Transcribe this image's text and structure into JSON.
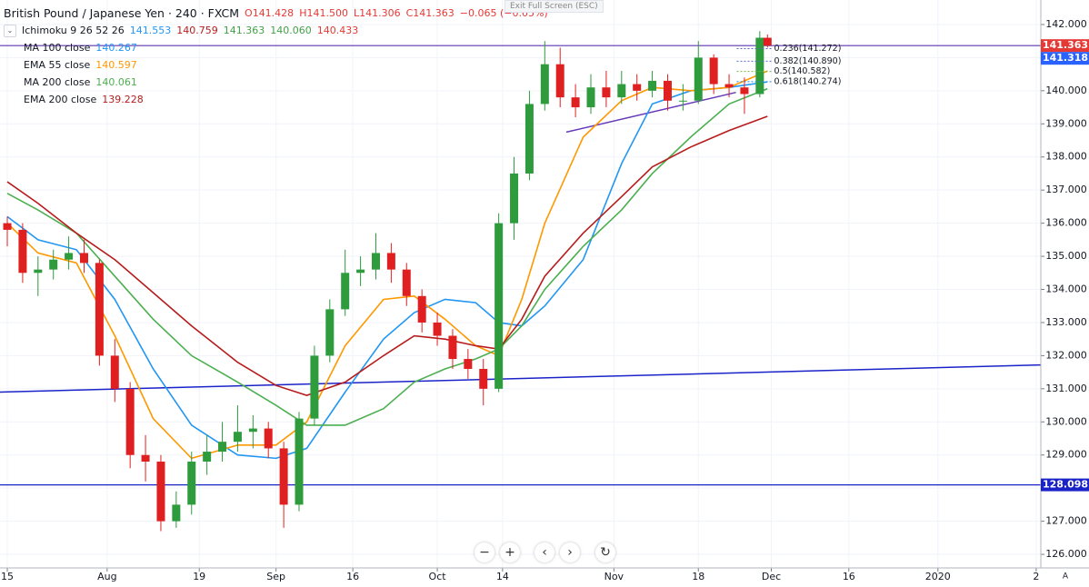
{
  "chart_data": {
    "type": "candlestick",
    "title": "British Pound / Japanese Yen · 240 · FXCM",
    "quote": [
      "O141.428",
      "H141.500",
      "L141.306",
      "C141.363",
      "−0.065 (−0.05%)"
    ],
    "quote_color": "#e53935",
    "indicator": {
      "name": "Ichimoku 9 26 52 26",
      "values": [
        "141.553",
        "140.759",
        "141.363",
        "140.060",
        "140.433"
      ],
      "colors": [
        "#2196f3",
        "#b71c1c",
        "#43a047",
        "#43a047",
        "#e53935"
      ]
    },
    "fullscreen_hint": "Exit Full Screen (ESC)",
    "scale_mode": "A",
    "xlim": [
      -0.95,
      134.6
    ],
    "ylim": [
      125.59,
      142.74
    ],
    "grid": true,
    "xticks": [
      {
        "value": 0,
        "label": "15"
      },
      {
        "value": 13,
        "label": "Aug"
      },
      {
        "value": 25,
        "label": "19"
      },
      {
        "value": 35,
        "label": "Sep"
      },
      {
        "value": 45,
        "label": "16"
      },
      {
        "value": 56,
        "label": "Oct"
      },
      {
        "value": 64.5,
        "label": "14"
      },
      {
        "value": 79,
        "label": "Nov"
      },
      {
        "value": 90,
        "label": "18"
      },
      {
        "value": 99.5,
        "label": "Dec"
      },
      {
        "value": 109.6,
        "label": "16"
      },
      {
        "value": 121.2,
        "label": "2020"
      },
      {
        "value": 134,
        "label": "2"
      }
    ],
    "yticks": [
      {
        "value": 126,
        "label": "126.000"
      },
      {
        "value": 127,
        "label": "127.000"
      },
      {
        "value": 128,
        "label": "128.000"
      },
      {
        "value": 129,
        "label": "129.000"
      },
      {
        "value": 130,
        "label": "130.000"
      },
      {
        "value": 131,
        "label": "131.000"
      },
      {
        "value": 132,
        "label": "132.000"
      },
      {
        "value": 133,
        "label": "133.000"
      },
      {
        "value": 134,
        "label": "134.000"
      },
      {
        "value": 135,
        "label": "135.000"
      },
      {
        "value": 136,
        "label": "136.000"
      },
      {
        "value": 137,
        "label": "137.000"
      },
      {
        "value": 138,
        "label": "138.000"
      },
      {
        "value": 139,
        "label": "139.000"
      },
      {
        "value": 140,
        "label": "140.000"
      },
      {
        "value": 141,
        "label": "141.000"
      },
      {
        "value": 142,
        "label": "142.000"
      }
    ],
    "up_color": "#2e9b3c",
    "down_color": "#e02020",
    "candles": {
      "x": [
        0,
        2,
        4,
        6,
        8,
        10,
        12,
        14,
        16,
        18,
        20,
        22,
        24,
        26,
        28,
        30,
        32,
        34,
        36,
        38,
        40,
        42,
        44,
        46,
        48,
        50,
        52,
        54,
        56,
        58,
        60,
        62,
        64,
        66,
        68,
        70,
        72,
        74,
        76,
        78,
        80,
        82,
        84,
        86,
        88,
        90,
        92,
        94,
        96,
        98,
        99
      ],
      "open": [
        136.0,
        135.8,
        134.5,
        134.6,
        134.9,
        135.1,
        134.8,
        132.0,
        131.0,
        129.0,
        128.8,
        127.0,
        127.5,
        128.8,
        129.1,
        129.4,
        129.7,
        129.8,
        129.2,
        127.5,
        130.1,
        132.0,
        133.4,
        134.5,
        134.6,
        135.1,
        134.6,
        133.8,
        133.0,
        132.6,
        131.9,
        131.6,
        131.0,
        136.0,
        137.5,
        139.6,
        140.8,
        139.8,
        139.5,
        140.1,
        139.8,
        140.2,
        140.0,
        140.3,
        139.7,
        139.7,
        141.0,
        140.2,
        140.1,
        139.9,
        141.6
      ],
      "high": [
        136.2,
        136.0,
        135.0,
        135.2,
        135.6,
        135.5,
        134.9,
        132.5,
        131.2,
        129.6,
        129.0,
        127.9,
        129.1,
        129.6,
        130.0,
        130.5,
        130.2,
        130.0,
        129.4,
        130.3,
        132.3,
        133.7,
        135.2,
        135.0,
        135.7,
        135.4,
        134.8,
        134.0,
        133.3,
        132.8,
        132.2,
        131.9,
        136.3,
        138.0,
        140.0,
        141.5,
        141.3,
        140.2,
        140.5,
        140.6,
        140.6,
        140.5,
        140.6,
        140.5,
        140.2,
        141.5,
        141.1,
        140.5,
        140.4,
        141.8,
        141.7
      ],
      "low": [
        135.3,
        134.2,
        133.8,
        134.3,
        134.6,
        134.5,
        131.7,
        130.6,
        128.6,
        128.2,
        126.7,
        126.8,
        127.2,
        128.4,
        128.8,
        129.1,
        129.2,
        128.9,
        126.8,
        127.3,
        129.9,
        131.8,
        133.2,
        134.1,
        134.3,
        134.2,
        133.5,
        132.7,
        132.3,
        131.6,
        131.3,
        130.5,
        130.9,
        135.5,
        137.3,
        139.4,
        139.5,
        139.2,
        139.3,
        139.5,
        139.6,
        139.7,
        139.8,
        139.4,
        139.4,
        139.6,
        139.9,
        139.8,
        139.3,
        139.8,
        141.306
      ],
      "close": [
        135.8,
        134.5,
        134.6,
        134.9,
        135.1,
        134.8,
        132.0,
        131.0,
        129.0,
        128.8,
        127.0,
        127.5,
        128.8,
        129.1,
        129.4,
        129.7,
        129.8,
        129.2,
        127.5,
        130.1,
        132.0,
        133.4,
        134.5,
        134.6,
        135.1,
        134.6,
        133.8,
        133.0,
        132.6,
        131.9,
        131.6,
        131.0,
        136.0,
        137.5,
        139.6,
        140.8,
        139.8,
        139.5,
        140.1,
        139.8,
        140.2,
        140.0,
        140.3,
        139.7,
        139.7,
        141.0,
        140.2,
        140.1,
        139.9,
        141.6,
        141.363
      ]
    },
    "series": [
      {
        "name": "MA 100 close",
        "legend_value": "140.267",
        "color": "#2196f3",
        "x": [
          0,
          4,
          9,
          14,
          19,
          24,
          30,
          35,
          39,
          44,
          49,
          53,
          57,
          61,
          64,
          67,
          70,
          75,
          80,
          84,
          89,
          94,
          99
        ],
        "values": [
          136.2,
          135.5,
          135.2,
          133.7,
          131.6,
          129.9,
          129.0,
          128.9,
          129.2,
          130.9,
          132.5,
          133.3,
          133.7,
          133.6,
          133.0,
          132.9,
          133.5,
          134.9,
          137.8,
          139.6,
          140.0,
          140.1,
          140.267
        ]
      },
      {
        "name": "EMA 55 close",
        "legend_value": "140.597",
        "color": "#ff9800",
        "x": [
          0,
          4,
          9,
          14,
          19,
          24,
          30,
          35,
          39,
          44,
          49,
          53,
          57,
          61,
          64,
          67,
          70,
          75,
          80,
          84,
          89,
          94,
          99
        ],
        "values": [
          136.0,
          135.1,
          134.8,
          132.6,
          130.1,
          128.9,
          129.3,
          129.3,
          130.0,
          132.3,
          133.7,
          133.8,
          133.1,
          132.3,
          132.0,
          133.7,
          136.0,
          138.6,
          139.7,
          140.1,
          140.0,
          140.1,
          140.597
        ]
      },
      {
        "name": "MA 200 close",
        "legend_value": "140.061",
        "color": "#4caf50",
        "x": [
          0,
          4,
          9,
          14,
          19,
          24,
          30,
          35,
          39,
          44,
          49,
          53,
          57,
          61,
          64,
          67,
          70,
          75,
          80,
          84,
          89,
          94,
          99
        ],
        "values": [
          136.9,
          136.4,
          135.7,
          134.4,
          133.1,
          132.0,
          131.2,
          130.5,
          129.9,
          129.9,
          130.4,
          131.2,
          131.6,
          131.9,
          132.2,
          132.9,
          134.0,
          135.3,
          136.4,
          137.5,
          138.6,
          139.6,
          140.061
        ]
      },
      {
        "name": "EMA 200 close",
        "legend_value": "139.228",
        "color": "#b71c1c",
        "x": [
          0,
          4,
          9,
          14,
          19,
          24,
          30,
          35,
          39,
          44,
          49,
          53,
          57,
          61,
          64,
          67,
          70,
          75,
          80,
          84,
          89,
          94,
          99
        ],
        "values": [
          137.25,
          136.6,
          135.7,
          134.9,
          133.9,
          132.9,
          131.8,
          131.1,
          130.8,
          131.2,
          132.0,
          132.6,
          132.5,
          132.3,
          132.2,
          133.1,
          134.4,
          135.7,
          136.8,
          137.7,
          138.3,
          138.8,
          139.228
        ]
      }
    ],
    "hlines": [
      {
        "value": 141.363,
        "label": "141.363",
        "color": "#5e35b1",
        "tag_color": "#e53935"
      },
      {
        "value": 128.098,
        "label": "128.098",
        "color": "#1a23c8",
        "tag_color": "#1a23c8"
      }
    ],
    "price_tags": [
      {
        "value": 141.318,
        "label": "141.318",
        "color": "#2962ff"
      }
    ],
    "trendlines": [
      {
        "x": [
          -0.95,
          134.6
        ],
        "values": [
          130.9,
          131.72
        ],
        "color": "#1a23c8"
      },
      {
        "x": [
          72.8,
          94.9
        ],
        "values": [
          138.75,
          139.95
        ],
        "color": "#673ab7"
      }
    ],
    "fib_levels": [
      {
        "label": "0.236(141.272)",
        "value": 141.272,
        "color": "#5c6bc0"
      },
      {
        "label": "0.382(140.890)",
        "value": 140.89,
        "color": "#5c6bc0"
      },
      {
        "label": "0.5(140.582)",
        "value": 140.582,
        "color": "#7cb342"
      },
      {
        "label": "0.618(140.274)",
        "value": 140.274,
        "color": "#1e88e5"
      }
    ],
    "fib_x": [
      95,
      99.5
    ]
  }
}
